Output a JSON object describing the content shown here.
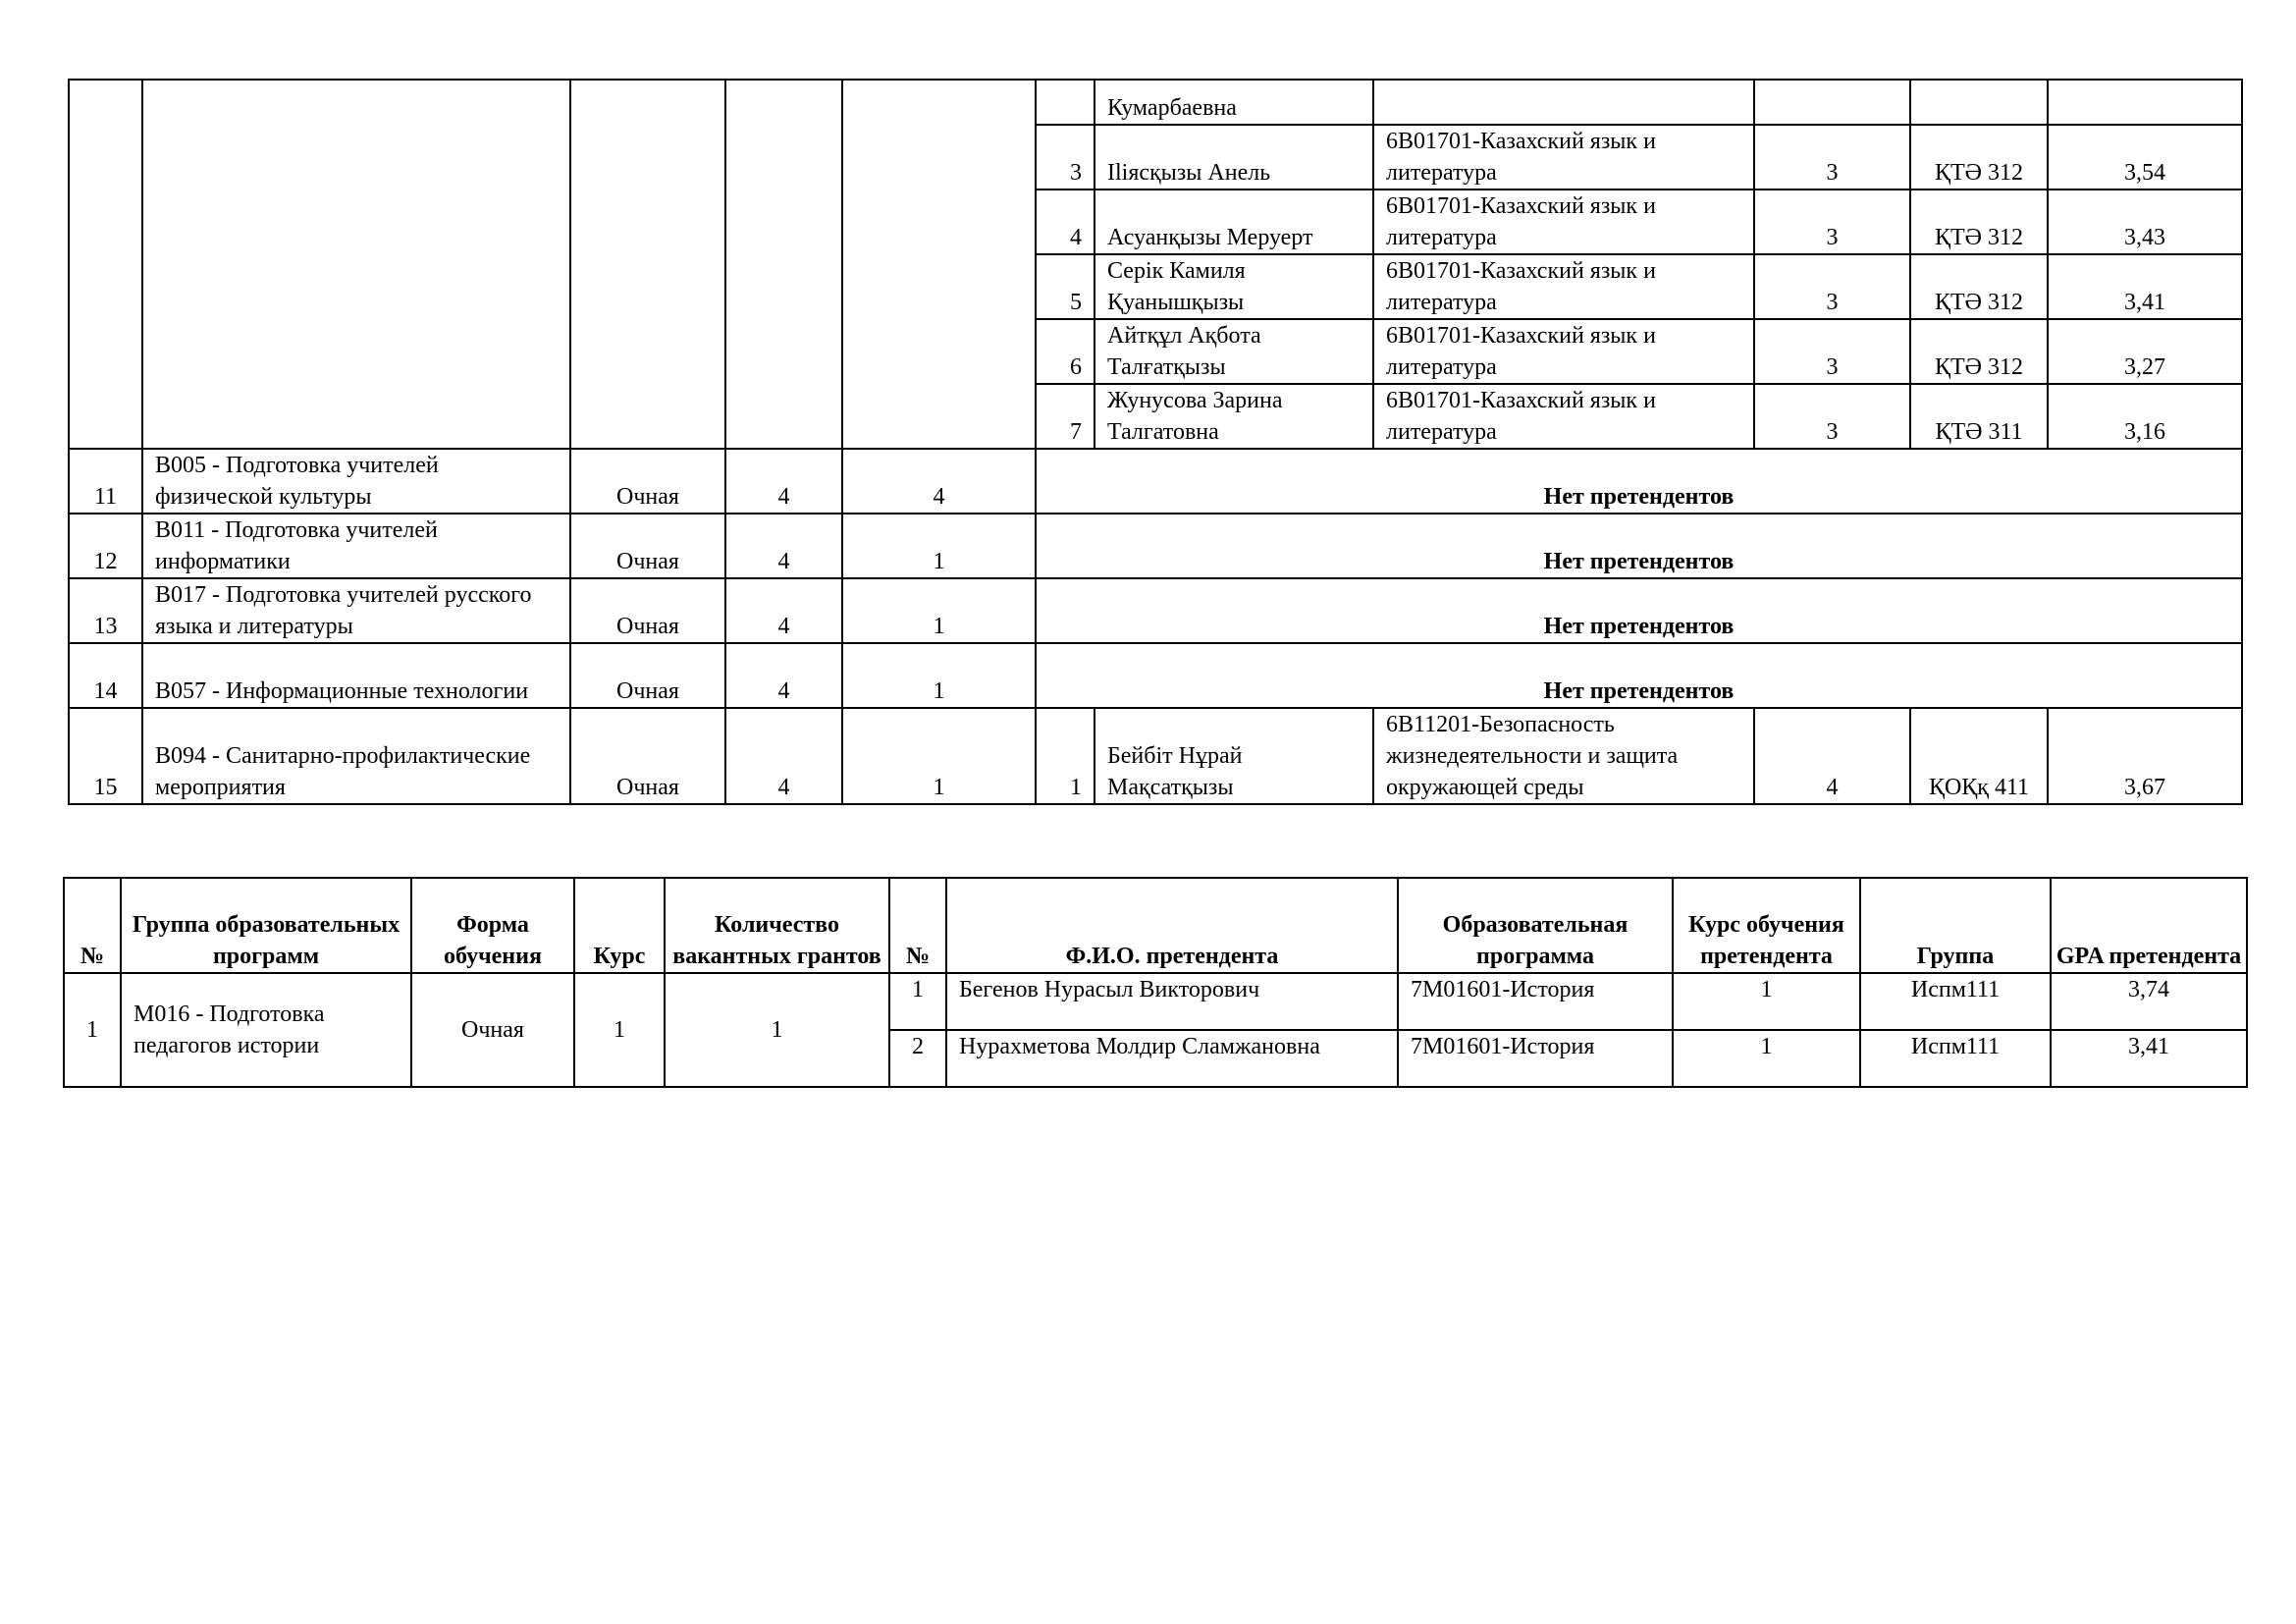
{
  "top_table": {
    "groups": [
      {
        "no": "",
        "group": "",
        "form": "",
        "course": "",
        "grants": "",
        "applicants": [
          {
            "no": "",
            "name": "Кумарбаевна",
            "program": "",
            "course": "",
            "group": "",
            "gpa": ""
          },
          {
            "no": "3",
            "name": "Іliясқызы Анель",
            "program": "6В01701-Казахский язык и литература",
            "course": "3",
            "group": "ҚТӘ 312",
            "gpa": "3,54"
          },
          {
            "no": "4",
            "name": "Асуанқызы Меруерт",
            "program": "6В01701-Казахский язык и литература",
            "course": "3",
            "group": "ҚТӘ 312",
            "gpa": "3,43"
          },
          {
            "no": "5",
            "name": "Серік Камиля Қуанышқызы",
            "program": "6В01701-Казахский язык и литература",
            "course": "3",
            "group": "ҚТӘ 312",
            "gpa": "3,41"
          },
          {
            "no": "6",
            "name": "Айтқұл Ақбота Талғатқызы",
            "program": "6В01701-Казахский язык и литература",
            "course": "3",
            "group": "ҚТӘ 312",
            "gpa": "3,27"
          },
          {
            "no": "7",
            "name": "Жунусова Зарина Талгатовна",
            "program": "6В01701-Казахский язык и литература",
            "course": "3",
            "group": "ҚТӘ 311",
            "gpa": "3,16"
          }
        ]
      },
      {
        "no": "11",
        "group": "В005 - Подготовка учителей физической культуры",
        "form": "Очная",
        "course": "4",
        "grants": "4",
        "none": "Нет претендентов"
      },
      {
        "no": "12",
        "group": "В011 - Подготовка учителей информатики",
        "form": "Очная",
        "course": "4",
        "grants": "1",
        "none": "Нет претендентов"
      },
      {
        "no": "13",
        "group": "В017 - Подготовка учителей русского языка и литературы",
        "form": "Очная",
        "course": "4",
        "grants": "1",
        "none": "Нет претендентов"
      },
      {
        "no": "14",
        "group": "В057 - Информационные технологии",
        "form": "Очная",
        "course": "4",
        "grants": "1",
        "none": "Нет претендентов"
      },
      {
        "no": "15",
        "group": "В094 - Санитарно-профилактические мероприятия",
        "form": "Очная",
        "course": "4",
        "grants": "1",
        "applicants": [
          {
            "no": "1",
            "name": "Бейбіт Нұрай Мақсатқызы",
            "program": "6В11201-Безопасность жизнедеятельности и защита окружающей среды",
            "course": "4",
            "group": "ҚОҚқ 411",
            "gpa": "3,67"
          }
        ]
      }
    ]
  },
  "bottom_table": {
    "headers": [
      "№",
      "Группа образовательных программ",
      "Форма обучения",
      "Курс",
      "Количество вакантных грантов",
      "№",
      "Ф.И.О. претендента",
      "Образовательная программа",
      "Курс обучения претендента",
      "Группа",
      "GPA претендента"
    ],
    "groups": [
      {
        "no": "1",
        "group": "М016 - Подготовка педагогов истории",
        "form": "Очная",
        "course": "1",
        "grants": "1",
        "applicants": [
          {
            "no": "1",
            "name": "Бегенов Нурасыл Викторович",
            "program": "7М01601-История",
            "course": "1",
            "group": "Испм111",
            "gpa": "3,74"
          },
          {
            "no": "2",
            "name": "Нурахметова Молдир Сламжановна",
            "program": "7М01601-История",
            "course": "1",
            "group": "Испм111",
            "gpa": "3,41"
          }
        ]
      }
    ]
  }
}
